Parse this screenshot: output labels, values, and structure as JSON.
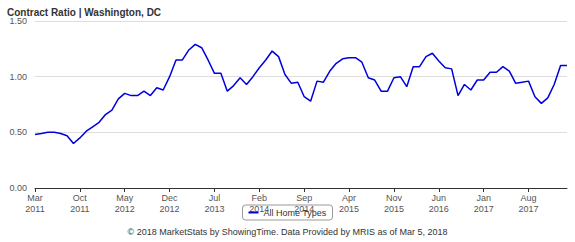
{
  "chart_data": {
    "type": "line",
    "title": "Contract Ratio | Washington, DC",
    "annotations": [
      "© 2018 MarketStats by ShowingTime. Data Provided by MRIS as of Mar 5, 2018"
    ],
    "categories": [
      "Mar\n2011",
      null,
      null,
      null,
      null,
      null,
      null,
      "Oct\n2011",
      null,
      null,
      null,
      null,
      null,
      null,
      "May\n2012",
      null,
      null,
      null,
      null,
      null,
      null,
      "Dec\n2012",
      null,
      null,
      null,
      null,
      null,
      null,
      "Jul\n2013",
      null,
      null,
      null,
      null,
      null,
      null,
      "Feb\n2014",
      null,
      null,
      null,
      null,
      null,
      null,
      "Sep\n2014",
      null,
      null,
      null,
      null,
      null,
      null,
      "Apr\n2015",
      null,
      null,
      null,
      null,
      null,
      null,
      "Nov\n2015",
      null,
      null,
      null,
      null,
      null,
      null,
      "Jun\n2016",
      null,
      null,
      null,
      null,
      null,
      null,
      "Jan\n2017",
      null,
      null,
      null,
      null,
      null,
      null,
      "Aug\n2017",
      null,
      null,
      null,
      null,
      null,
      null
    ],
    "series": [
      {
        "name": "All Home Types",
        "color": "#0000dd",
        "values": [
          0.48,
          0.49,
          0.5,
          0.5,
          0.49,
          0.47,
          0.4,
          0.45,
          0.51,
          0.55,
          0.59,
          0.66,
          0.7,
          0.8,
          0.85,
          0.83,
          0.83,
          0.87,
          0.83,
          0.9,
          0.88,
          1.0,
          1.15,
          1.15,
          1.24,
          1.29,
          1.26,
          1.15,
          1.03,
          1.03,
          0.87,
          0.92,
          0.99,
          0.93,
          1.0,
          1.08,
          1.15,
          1.23,
          1.18,
          1.02,
          0.94,
          0.95,
          0.82,
          0.78,
          0.96,
          0.95,
          1.05,
          1.12,
          1.16,
          1.17,
          1.17,
          1.13,
          0.99,
          0.97,
          0.87,
          0.87,
          0.99,
          1.0,
          0.91,
          1.09,
          1.09,
          1.18,
          1.21,
          1.14,
          1.08,
          1.07,
          0.83,
          0.93,
          0.88,
          0.97,
          0.97,
          1.04,
          1.04,
          1.09,
          1.05,
          0.94,
          0.95,
          0.96,
          0.82,
          0.76,
          0.81,
          0.93,
          1.1,
          1.1
        ]
      }
    ],
    "ylim": [
      0,
      1.5
    ],
    "yticks": [
      {
        "value": 0,
        "label": "0.00"
      },
      {
        "value": 0.5,
        "label": "0.50"
      },
      {
        "value": 1,
        "label": "1.00"
      },
      {
        "value": 1.5,
        "label": "1.50"
      }
    ],
    "grid": true,
    "legend": "bottom"
  }
}
